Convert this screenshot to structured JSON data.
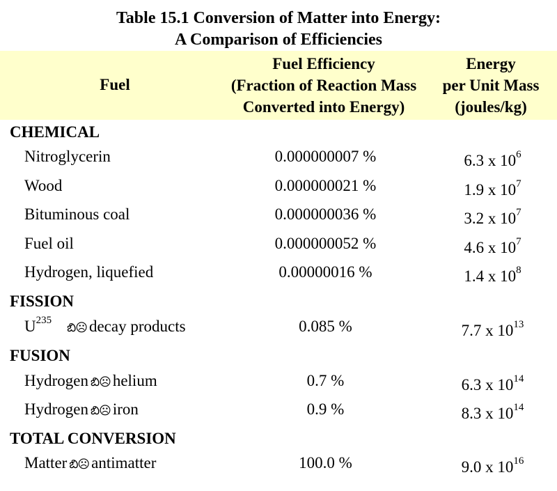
{
  "title": {
    "line1": "Table 15.1 Conversion of Matter into Energy:",
    "line2": "A Comparison of Efficiencies"
  },
  "header": {
    "fuel": "Fuel",
    "efficiency": [
      "Fuel Efficiency",
      "(Fraction of Reaction Mass",
      "Converted into Energy)"
    ],
    "energy": [
      "Energy",
      "per Unit Mass",
      "(joules/kg)"
    ]
  },
  "sections": {
    "chemical": "CHEMICAL",
    "fission": "FISSION",
    "fusion": "FUSION",
    "total": "TOTAL CONVERSION"
  },
  "arrow_glyph": "బి☹",
  "rows": [
    {
      "fuel": "Nitroglycerin",
      "efficiency": "0.000000007 %",
      "energy_mant": "6.3 x 10",
      "energy_exp": "6"
    },
    {
      "fuel": "Wood",
      "efficiency": "0.000000021 %",
      "energy_mant": "1.9 x 10",
      "energy_exp": "7"
    },
    {
      "fuel": "Bituminous coal",
      "efficiency": "0.000000036 %",
      "energy_mant": "3.2 x 10",
      "energy_exp": "7"
    },
    {
      "fuel": "Fuel oil",
      "efficiency": "0.000000052 %",
      "energy_mant": "4.6 x 10",
      "energy_exp": "7"
    },
    {
      "fuel": "Hydrogen, liquefied",
      "efficiency": "0.00000016 %",
      "energy_mant": "1.4 x 10",
      "energy_exp": "8"
    },
    {
      "fuel_a": "U",
      "fuel_sup": "235",
      "fuel_b": "decay products",
      "efficiency": "0.085 %",
      "energy_mant": "7.7 x 10",
      "energy_exp": "13"
    },
    {
      "fuel_a": "Hydrogen",
      "fuel_b": "helium",
      "efficiency": "0.7 %",
      "energy_mant": "6.3 x 10",
      "energy_exp": "14"
    },
    {
      "fuel_a": "Hydrogen",
      "fuel_b": "iron",
      "efficiency": "0.9 %",
      "energy_mant": "8.3 x 10",
      "energy_exp": "14"
    },
    {
      "fuel_a": "Matter",
      "fuel_b": "antimatter",
      "efficiency": "100.0 %",
      "energy_mant": "9.0 x 10",
      "energy_exp": "16"
    }
  ]
}
